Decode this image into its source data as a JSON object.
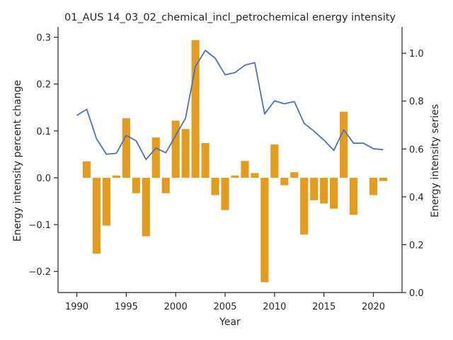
{
  "chart_data": {
    "type": "bar+line",
    "title": "01_AUS 14_03_02_chemical_incl_petrochemical energy intensity",
    "xlabel": "Year",
    "ylabel_left": "Energy intensity percent change",
    "ylabel_right": "Energy intensity series",
    "xlim": [
      1988.1,
      2022.9
    ],
    "ylim_left": [
      -0.245,
      0.322
    ],
    "ylim_right": [
      0.0,
      1.11
    ],
    "x_ticks": [
      1990,
      1995,
      2000,
      2005,
      2010,
      2015,
      2020
    ],
    "y_ticks_left": [
      -0.2,
      -0.1,
      0.0,
      0.1,
      0.2,
      0.3
    ],
    "y_ticks_right": [
      0.0,
      0.2,
      0.4,
      0.6,
      0.8,
      1.0
    ],
    "bar_color": "#e39c22",
    "line_color": "#4c72b0",
    "grid": false,
    "series": [
      {
        "kind": "bar",
        "axis": "left",
        "x": [
          1991,
          1992,
          1993,
          1994,
          1995,
          1996,
          1997,
          1998,
          1999,
          2000,
          2001,
          2002,
          2003,
          2004,
          2005,
          2006,
          2007,
          2008,
          2009,
          2010,
          2011,
          2012,
          2013,
          2014,
          2015,
          2016,
          2017,
          2018,
          2019,
          2020,
          2021
        ],
        "values": [
          0.035,
          -0.162,
          -0.102,
          0.005,
          0.127,
          -0.033,
          -0.125,
          0.086,
          -0.033,
          0.122,
          0.104,
          0.294,
          0.074,
          -0.037,
          -0.069,
          0.005,
          0.036,
          0.01,
          -0.223,
          0.071,
          -0.016,
          0.012,
          -0.121,
          -0.048,
          -0.055,
          -0.066,
          0.141,
          -0.079,
          0.0,
          -0.037,
          -0.007
        ]
      },
      {
        "kind": "line",
        "axis": "right",
        "x": [
          1990,
          1991,
          1992,
          1993,
          1994,
          1995,
          1996,
          1997,
          1998,
          1999,
          2000,
          2001,
          2002,
          2003,
          2004,
          2005,
          2006,
          2007,
          2008,
          2009,
          2010,
          2011,
          2012,
          2013,
          2014,
          2015,
          2016,
          2017,
          2018,
          2019,
          2020,
          2021
        ],
        "values": [
          0.74,
          0.766,
          0.642,
          0.578,
          0.582,
          0.657,
          0.634,
          0.556,
          0.604,
          0.584,
          0.656,
          0.729,
          0.945,
          1.012,
          0.979,
          0.91,
          0.919,
          0.95,
          0.961,
          0.746,
          0.801,
          0.789,
          0.798,
          0.707,
          0.674,
          0.637,
          0.594,
          0.68,
          0.624,
          0.624,
          0.601,
          0.597
        ]
      }
    ]
  }
}
